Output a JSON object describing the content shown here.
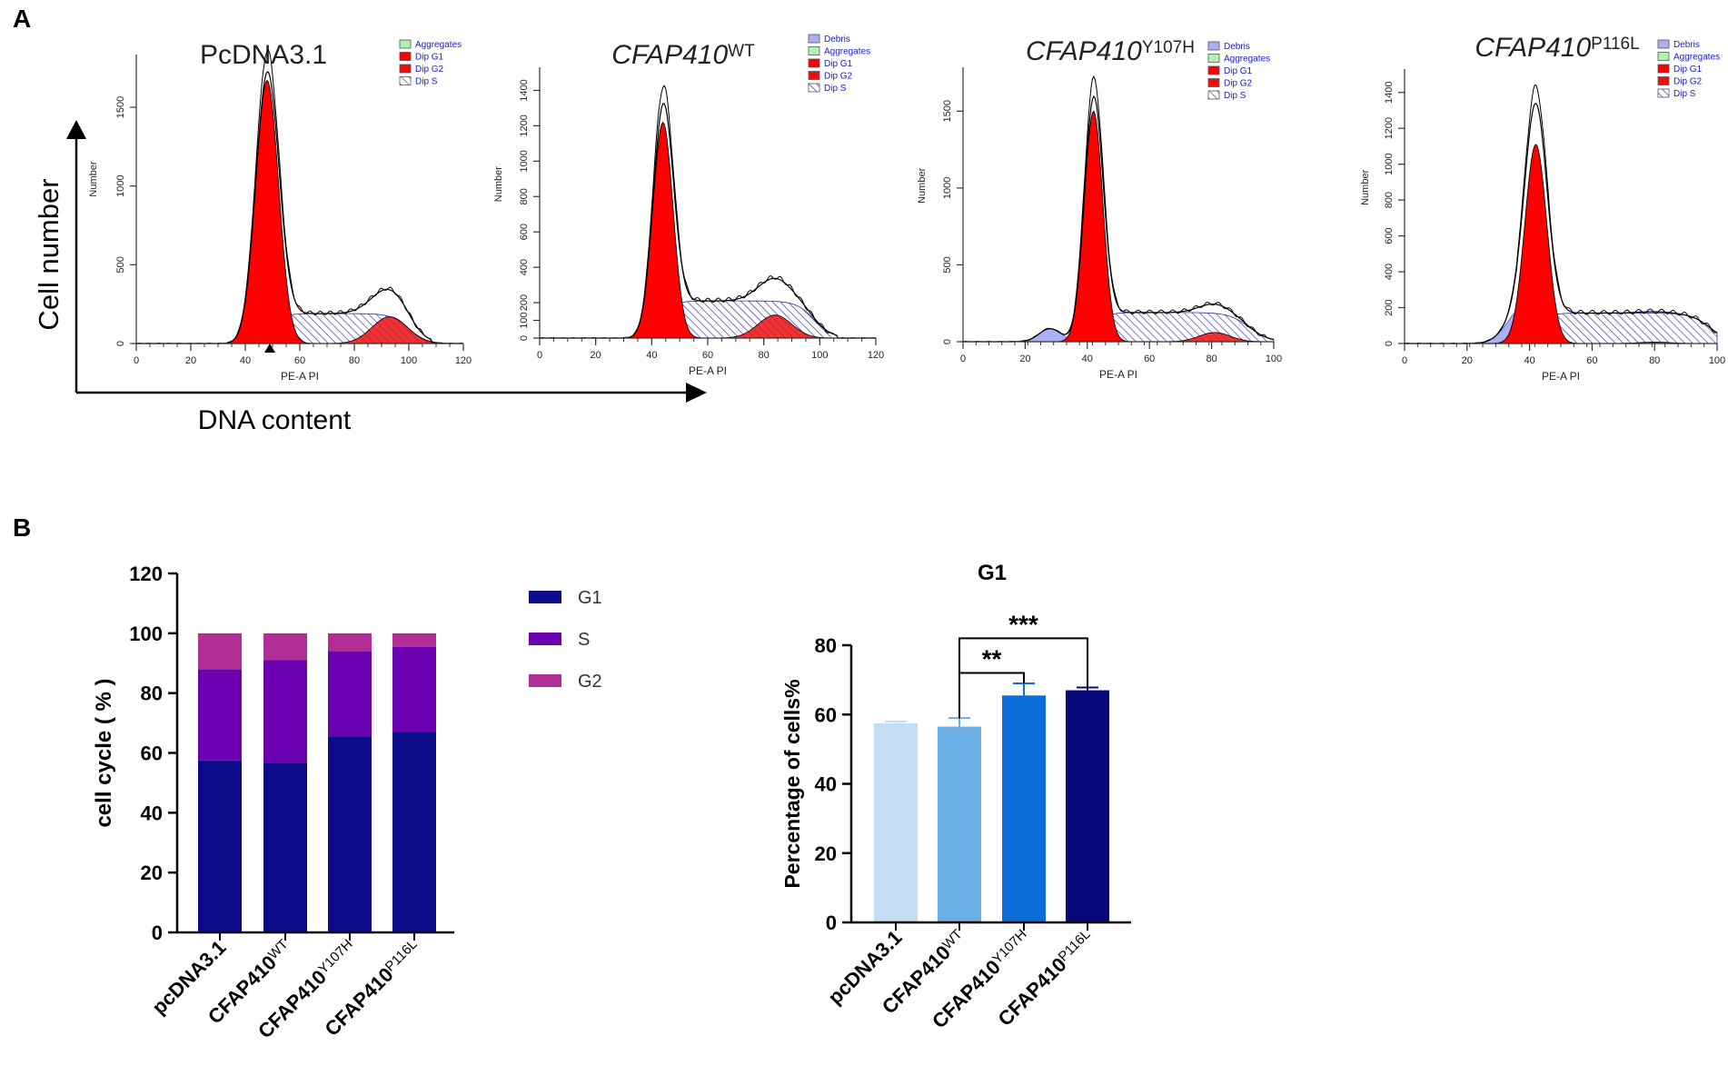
{
  "panel_labels": {
    "a": "A",
    "b": "B"
  },
  "panel_a": {
    "y_title": "Cell number",
    "x_title": "DNA content",
    "hist_xlabel": "PE-A PI",
    "hist_ylabel": "Number",
    "colors": {
      "g1": "#ff0000",
      "g2": "#e81010",
      "s_hatch": "#2a2aa8",
      "debris": "#aab0f0",
      "aggregates": "#b4f0b4",
      "legend_text": "#1a1acc"
    }
  },
  "chart_data": [
    {
      "type": "histogram",
      "title": "PcDNA3.1",
      "title_italic": false,
      "sup": "",
      "xlabel": "PE-A PI",
      "ylabel": "Number",
      "xlim": [
        0,
        120
      ],
      "ylim": [
        0,
        1800
      ],
      "xticks": [
        0,
        20,
        40,
        60,
        80,
        100,
        120
      ],
      "yticks": [
        0,
        500,
        1000,
        1500
      ],
      "legend": [
        {
          "label": "Aggregates",
          "swatch": "aggregates"
        },
        {
          "label": "Dip G1",
          "swatch": "g1"
        },
        {
          "label": "Dip G2",
          "swatch": "g2"
        },
        {
          "label": "Dip S",
          "swatch": "hatch"
        }
      ],
      "g1": {
        "mean": 48,
        "sd": 4.2,
        "height": 1670
      },
      "g2": {
        "mean": 93,
        "sd": 6.5,
        "height": 170
      },
      "s": {
        "start": 50,
        "end": 100,
        "height": 190
      },
      "debris": null,
      "marker": 49
    },
    {
      "type": "histogram",
      "title": "CFAP410",
      "title_italic": true,
      "sup": "WT",
      "xlabel": "PE-A PI",
      "ylabel": "Number",
      "xlim": [
        0,
        120
      ],
      "ylim": [
        0,
        1500
      ],
      "xticks": [
        0,
        20,
        40,
        60,
        80,
        100,
        120
      ],
      "yticks": [
        0,
        100,
        200,
        400,
        600,
        800,
        1000,
        1200,
        1400
      ],
      "legend": [
        {
          "label": "Debris",
          "swatch": "debris"
        },
        {
          "label": "Aggregates",
          "swatch": "aggregates"
        },
        {
          "label": "Dip G1",
          "swatch": "g1"
        },
        {
          "label": "Dip G2",
          "swatch": "g2"
        },
        {
          "label": "Dip S",
          "swatch": "hatch"
        }
      ],
      "g1": {
        "mean": 44,
        "sd": 3.6,
        "height": 1220
      },
      "g2": {
        "mean": 84,
        "sd": 6,
        "height": 130
      },
      "s": {
        "start": 44,
        "end": 98,
        "height": 210
      },
      "debris": null,
      "marker": null
    },
    {
      "type": "histogram",
      "title": "CFAP410",
      "title_italic": true,
      "sup": "Y107H",
      "xlabel": "PE-A PI",
      "ylabel": "Number",
      "xlim": [
        0,
        100
      ],
      "ylim": [
        0,
        1750
      ],
      "xticks": [
        0,
        20,
        40,
        60,
        80,
        100
      ],
      "yticks": [
        0,
        500,
        1000,
        1500
      ],
      "legend": [
        {
          "label": "Debris",
          "swatch": "debris"
        },
        {
          "label": "Aggregates",
          "swatch": "aggregates"
        },
        {
          "label": "Dip G1",
          "swatch": "g1"
        },
        {
          "label": "Dip G2",
          "swatch": "g2"
        },
        {
          "label": "Dip S",
          "swatch": "hatch"
        }
      ],
      "g1": {
        "mean": 42,
        "sd": 3.0,
        "height": 1500
      },
      "g2": {
        "mean": 81,
        "sd": 5,
        "height": 60
      },
      "s": {
        "start": 42,
        "end": 92,
        "height": 190
      },
      "debris": {
        "mean": 28,
        "sd": 3.5,
        "height": 85
      },
      "marker": null
    },
    {
      "type": "histogram",
      "title": "CFAP410",
      "title_italic": true,
      "sup": "P116L",
      "xlabel": "PE-A PI",
      "ylabel": "Number",
      "xlim": [
        0,
        100
      ],
      "ylim": [
        0,
        1500
      ],
      "xticks": [
        0,
        20,
        40,
        60,
        80,
        100
      ],
      "yticks": [
        0,
        200,
        400,
        600,
        800,
        1000,
        1200,
        1400
      ],
      "legend": [
        {
          "label": "Debris",
          "swatch": "debris"
        },
        {
          "label": "Aggregates",
          "swatch": "aggregates"
        },
        {
          "label": "Dip G1",
          "swatch": "g1"
        },
        {
          "label": "Dip G2",
          "swatch": "g2"
        },
        {
          "label": "Dip S",
          "swatch": "hatch"
        }
      ],
      "g1": {
        "mean": 42,
        "sd": 3.5,
        "height": 1110
      },
      "g2": {
        "mean": 80,
        "sd": 5,
        "height": 8
      },
      "s": {
        "start": 42,
        "end": 98,
        "height": 170
      },
      "debris": {
        "mean": 38,
        "sd": 5,
        "height": 200
      },
      "marker": null
    },
    {
      "type": "bar",
      "stacked": true,
      "categories": [
        {
          "base": "pcDNA3.1",
          "sup": ""
        },
        {
          "base": "CFAP410",
          "sup": "WT"
        },
        {
          "base": "CFAP410",
          "sup": "Y107H"
        },
        {
          "base": "CFAP410",
          "sup": "P116L"
        }
      ],
      "series": [
        {
          "name": "G1",
          "values": [
            57.5,
            56.5,
            65.5,
            67
          ],
          "color": "#0b0b8a"
        },
        {
          "name": "S",
          "values": [
            30.5,
            34.5,
            28.5,
            28.5
          ],
          "color": "#6a00b0"
        },
        {
          "name": "G2",
          "values": [
            12,
            9,
            6,
            4.5
          ],
          "color": "#b02e96"
        }
      ],
      "ylabel": "cell cycle ( % )",
      "ylim": [
        0,
        120
      ],
      "yticks": [
        0,
        20,
        40,
        60,
        80,
        100,
        120
      ]
    },
    {
      "type": "bar",
      "title": "G1",
      "categories": [
        {
          "base": "pcDNA3.1",
          "sup": ""
        },
        {
          "base": "CFAP410",
          "sup": "WT"
        },
        {
          "base": "CFAP410",
          "sup": "Y107H"
        },
        {
          "base": "CFAP410",
          "sup": "P116L"
        }
      ],
      "values": [
        57.5,
        56.5,
        65.5,
        67
      ],
      "errors": [
        0.5,
        2.5,
        3.5,
        0.8
      ],
      "colors": [
        "#c5ddf5",
        "#6aaee6",
        "#0b6ed8",
        "#07087a"
      ],
      "ylabel": "Percentage of cells%",
      "ylim": [
        0,
        80
      ],
      "yticks": [
        0,
        20,
        40,
        60,
        80
      ],
      "significance": [
        {
          "from": 1,
          "to": 2,
          "label": "**"
        },
        {
          "from": 1,
          "to": 3,
          "label": "***"
        }
      ]
    }
  ]
}
